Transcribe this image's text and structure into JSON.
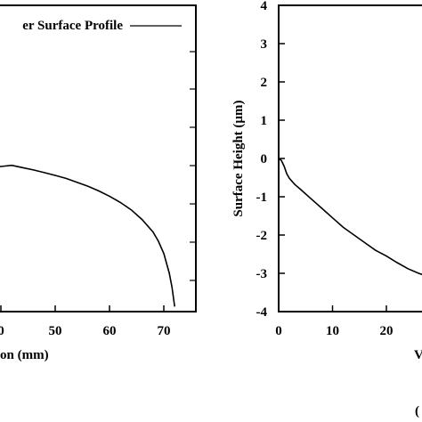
{
  "chart_data": [
    {
      "type": "line",
      "xlabel": "on (mm)",
      "ylabel": "",
      "x_ticks": [
        "0",
        "50",
        "60",
        "70"
      ],
      "legend_text": "er Surface Profile",
      "legend_placement": "top-right",
      "series": [
        {
          "name": "er Surface Profile",
          "x": [
            38.5,
            40,
            42,
            44,
            46,
            48,
            50,
            52,
            54,
            56,
            58,
            60,
            62,
            64,
            66,
            68,
            69,
            70,
            71,
            71.5,
            72
          ],
          "y": [
            0.05,
            0.07,
            0.1,
            0.04,
            -0.02,
            -0.09,
            -0.16,
            -0.24,
            -0.34,
            -0.44,
            -0.56,
            -0.7,
            -0.86,
            -1.05,
            -1.3,
            -1.62,
            -1.86,
            -2.18,
            -2.68,
            -3.05,
            -3.55
          ]
        }
      ]
    },
    {
      "type": "line",
      "xlabel": "V",
      "ylabel": "Surface Height (µm)",
      "y_ticks": [
        "4",
        "3",
        "2",
        "1",
        "0",
        "-1",
        "-2",
        "-3",
        "-4"
      ],
      "x_ticks": [
        "0",
        "10",
        "20"
      ],
      "ylim": [
        -4,
        4
      ],
      "series": [
        {
          "x": [
            0,
            0.5,
            1,
            1.5,
            2,
            3,
            4,
            6,
            8,
            10,
            12,
            14,
            16,
            18,
            20,
            22,
            24,
            26,
            27
          ],
          "y": [
            0,
            -0.05,
            -0.2,
            -0.4,
            -0.52,
            -0.68,
            -0.8,
            -1.05,
            -1.3,
            -1.55,
            -1.8,
            -2.0,
            -2.2,
            -2.4,
            -2.55,
            -2.72,
            -2.88,
            -3.0,
            -3.05
          ]
        }
      ]
    }
  ],
  "footer": {
    "caption_fragment": "("
  }
}
